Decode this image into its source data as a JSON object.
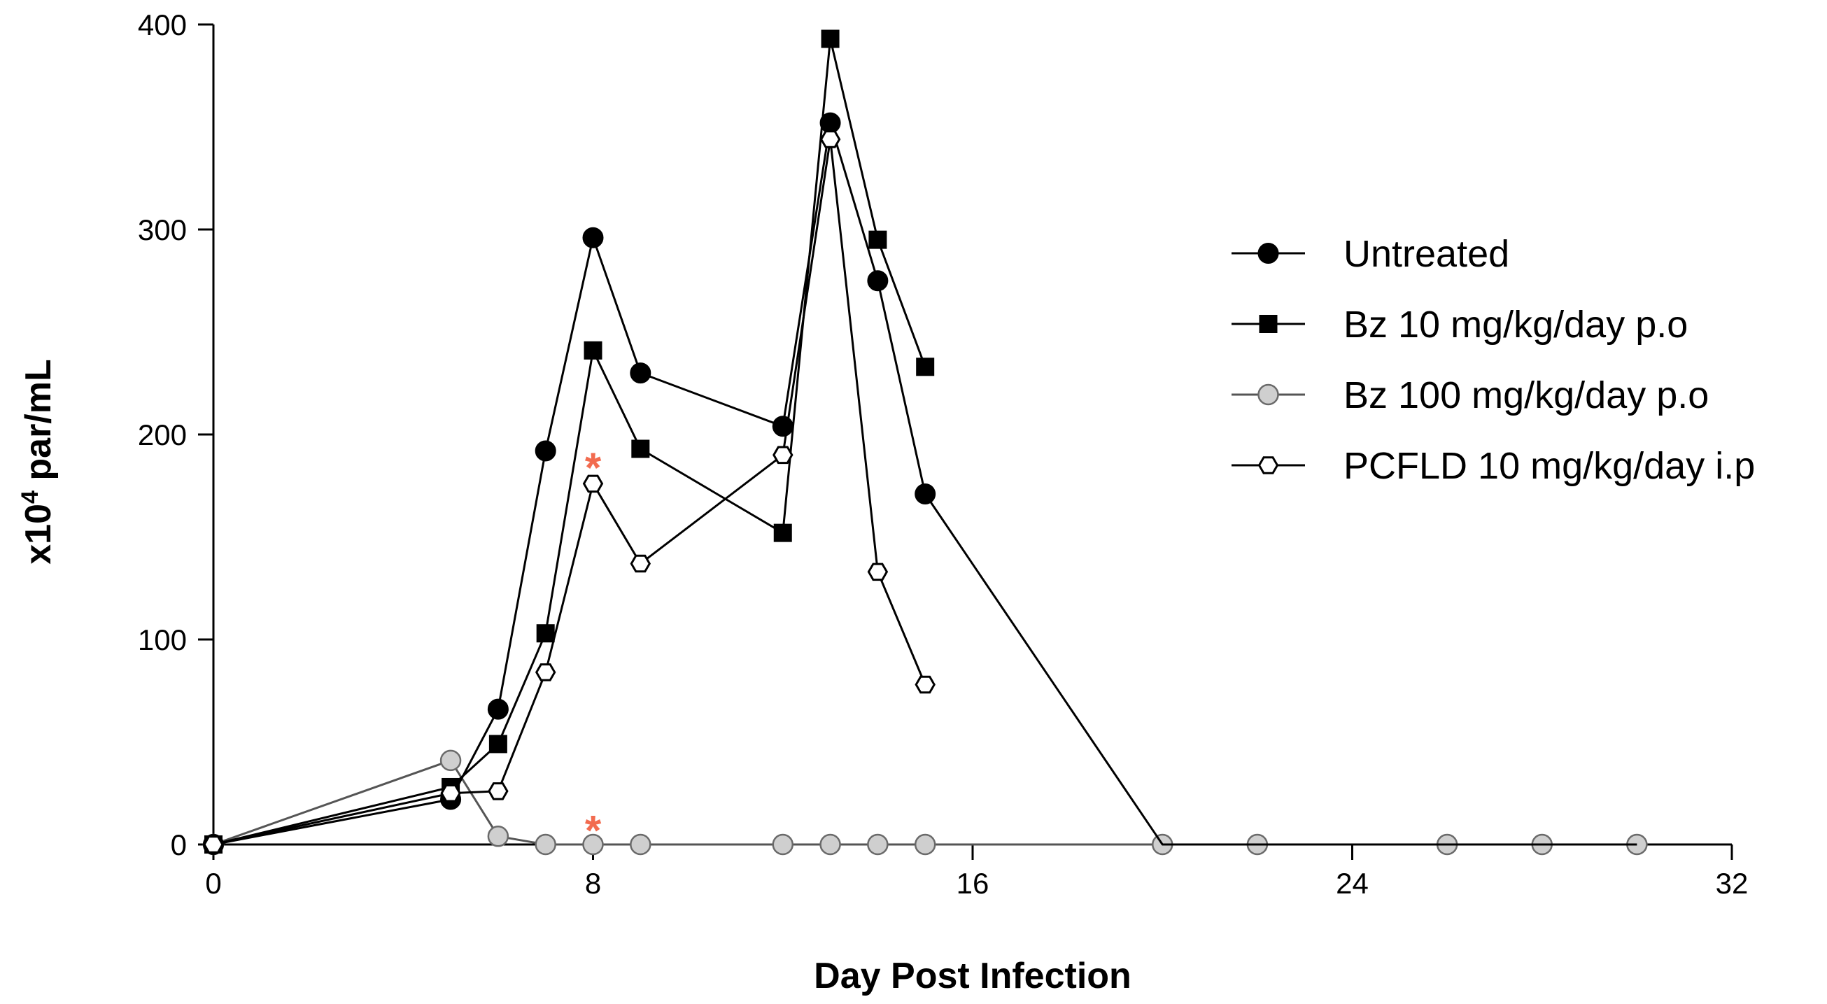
{
  "chart_data": {
    "type": "line",
    "xlabel": "Day Post Infection",
    "ylabel_prefix": "x10",
    "ylabel_exponent": "4",
    "ylabel_suffix": " par/mL",
    "xlim": [
      0,
      32
    ],
    "ylim": [
      0,
      400
    ],
    "xticks": [
      0,
      8,
      16,
      24,
      32
    ],
    "yticks": [
      0,
      100,
      200,
      300,
      400
    ],
    "grid": false,
    "legend_position": "right",
    "series": [
      {
        "name": "Untreated",
        "marker": "circle-filled",
        "color": "#000000",
        "x": [
          0,
          5,
          6,
          7,
          8,
          9,
          12,
          13,
          14,
          15,
          20,
          22,
          26,
          28,
          30
        ],
        "y": [
          0,
          22,
          66,
          192,
          296,
          230,
          204,
          352,
          275,
          171,
          0,
          0,
          0,
          0,
          0
        ],
        "draw_markers": [
          true,
          true,
          true,
          true,
          true,
          true,
          true,
          true,
          true,
          true,
          false,
          false,
          false,
          false,
          false
        ]
      },
      {
        "name": "Bz 10 mg/kg/day p.o",
        "marker": "square-filled",
        "color": "#000000",
        "x": [
          0,
          5,
          6,
          7,
          8,
          9,
          12,
          13,
          14,
          15
        ],
        "y": [
          0,
          28,
          49,
          103,
          241,
          193,
          152,
          393,
          295,
          233
        ]
      },
      {
        "name": "Bz 100 mg/kg/day p.o",
        "marker": "circle-grey",
        "color": "#555555",
        "x": [
          0,
          5,
          6,
          7,
          8,
          9,
          12,
          13,
          14,
          15,
          20,
          22,
          26,
          28,
          30
        ],
        "y": [
          0,
          41,
          4,
          0,
          0,
          0,
          0,
          0,
          0,
          0,
          0,
          0,
          0,
          0,
          0
        ]
      },
      {
        "name": "PCFLD 10 mg/kg/day i.p",
        "marker": "hexagon-open",
        "color": "#000000",
        "x": [
          0,
          5,
          6,
          7,
          8,
          9,
          12,
          13,
          14,
          15
        ],
        "y": [
          0,
          25,
          26,
          84,
          176,
          137,
          190,
          344,
          133,
          78
        ]
      }
    ],
    "annotations": [
      {
        "text": "*",
        "x": 8,
        "y": 187,
        "color": "#f26b4f"
      },
      {
        "text": "*",
        "x": 8,
        "y": 10,
        "color": "#f26b4f"
      }
    ]
  }
}
